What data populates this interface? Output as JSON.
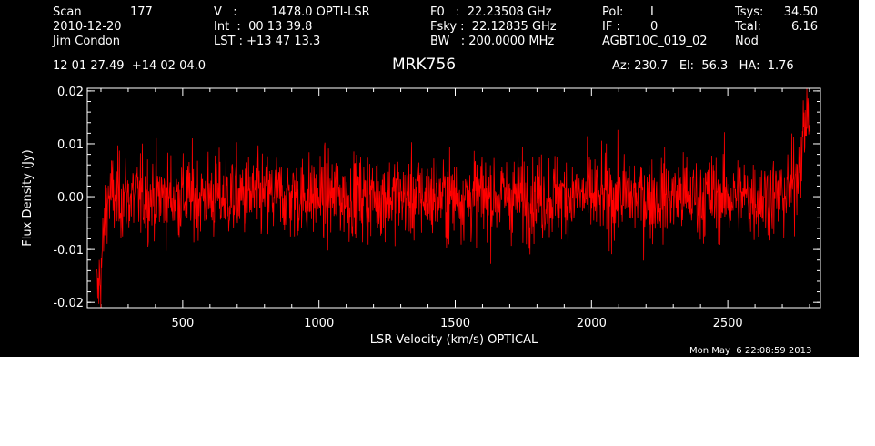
{
  "header": {
    "scan_label": "Scan",
    "scan_value": "177",
    "date": "2010-12-20",
    "observer": "Jim Condon",
    "v_label": "V   :",
    "v_value": "1478.0 OPTI-LSR",
    "int_line": "Int  :  00 13 39.8",
    "lst_line": "LST : +13 47 13.3",
    "f0_line": "F0   :  22.23508 GHz",
    "fsky_line": "Fsky :  22.12835 GHz",
    "bw_line": "BW   : 200.0000 MHz",
    "pol_label": "Pol:",
    "pol_value": "I",
    "if_label": "IF :",
    "if_value": "0",
    "project": "AGBT10C_019_02",
    "tsys_label": "Tsys:",
    "tsys_value": "34.50",
    "tcal_label": "Tcal:",
    "tcal_value": "6.16",
    "mode": "Nod",
    "coords": "12 01 27.49  +14 02 04.0",
    "az_el_ha": "Az: 230.7   El:  56.3   HA:  1.76"
  },
  "timestamp": "Mon May  6 22:08:59 2013",
  "colors": {
    "background": "#000000",
    "axes": "#ffffff",
    "series": "#ff0000"
  },
  "chart_data": {
    "type": "line",
    "title": "MRK756",
    "xlabel": "LSR Velocity (km/s) OPTICAL",
    "ylabel": "Flux Density (Jy)",
    "xlim": [
      150,
      2840
    ],
    "ylim": [
      -0.021,
      0.0205
    ],
    "x_ticks": [
      500,
      1000,
      1500,
      2000,
      2500
    ],
    "y_ticks": [
      -0.02,
      -0.01,
      0.0,
      0.01,
      0.02
    ],
    "y_tick_labels": [
      "-0.02",
      "-0.01",
      "0.00",
      "0.01",
      "0.02"
    ],
    "grid": false,
    "series": [
      {
        "color": "#ff0000",
        "x": [
          185,
          200,
          210,
          215,
          225,
          250,
          300,
          400,
          500,
          600,
          700,
          800,
          900,
          1000,
          1100,
          1200,
          1300,
          1400,
          1500,
          1600,
          1700,
          1800,
          1900,
          2000,
          2100,
          2200,
          2300,
          2400,
          2500,
          2600,
          2700,
          2740,
          2760,
          2775,
          2790,
          2800
        ],
        "y": [
          -0.019,
          -0.014,
          -0.008,
          -0.004,
          0.0,
          0.0,
          0.0,
          0.0,
          0.0,
          0.0,
          0.0,
          0.0,
          0.0,
          0.0,
          0.0,
          0.0,
          0.0,
          0.0,
          0.0,
          0.0,
          0.0,
          0.0,
          0.0,
          0.0,
          0.0,
          0.0,
          0.0,
          0.0,
          0.0,
          0.0,
          0.0,
          0.002,
          0.006,
          0.01,
          0.017,
          0.015
        ],
        "noise_rms_jy": 0.004
      }
    ]
  }
}
